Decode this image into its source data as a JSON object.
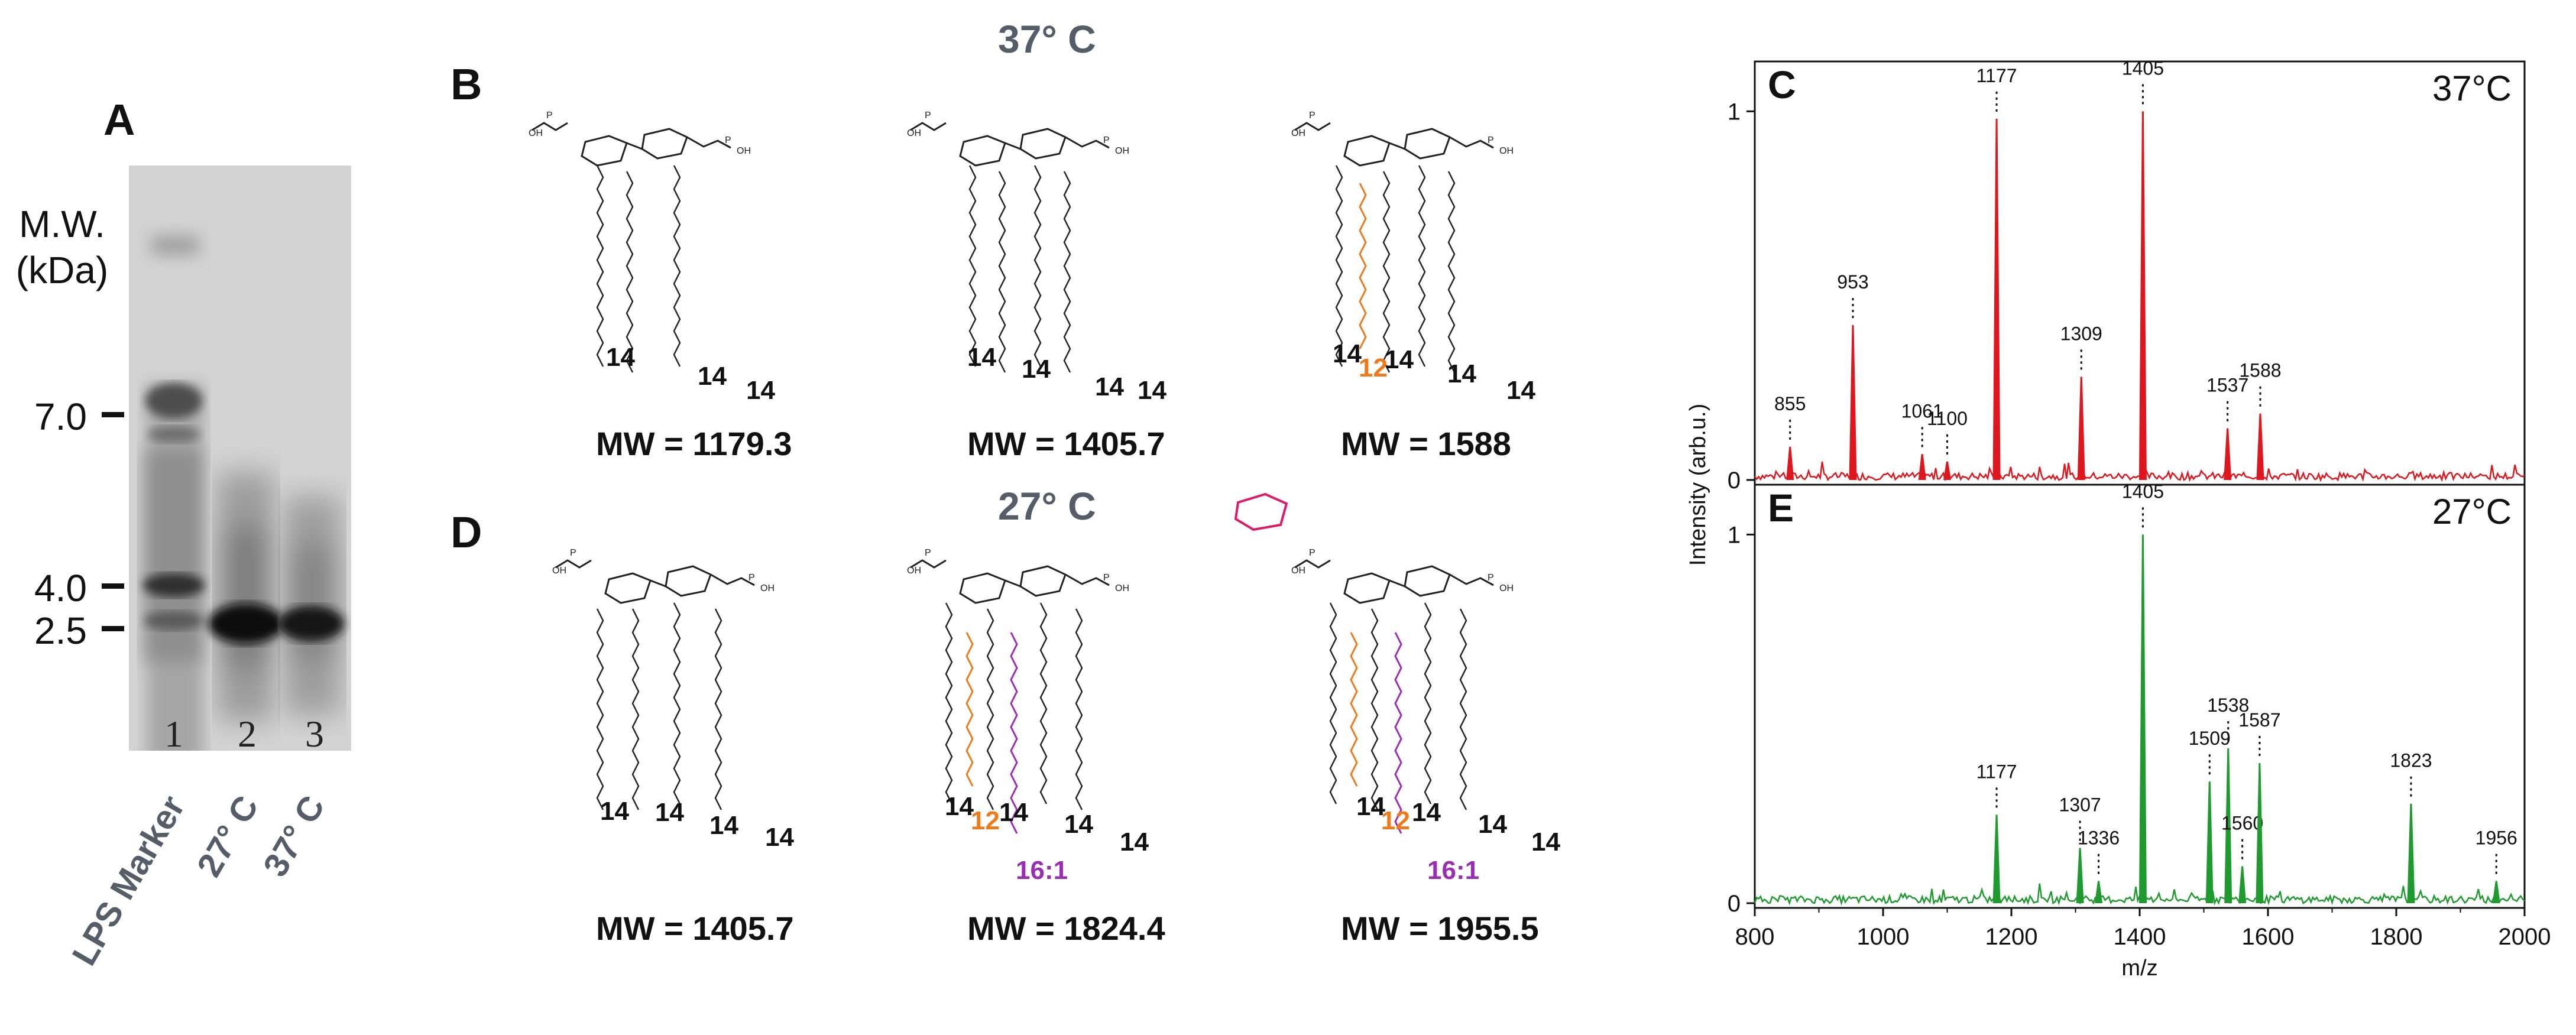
{
  "panel_a": {
    "label": "A",
    "ylabel_line1": "M.W.",
    "ylabel_line2": "(kDa)",
    "ticks": [
      "7.0",
      "4.0",
      "2.5"
    ],
    "lane_numbers": [
      "1",
      "2",
      "3"
    ],
    "lane_labels": [
      "LPS Marker",
      "27° C",
      "37° C"
    ]
  },
  "panel_b": {
    "label": "B",
    "title": "37° C",
    "structures": [
      {
        "chain_labels": [
          "14",
          "14",
          "14"
        ],
        "mw": "MW = 1179.3"
      },
      {
        "chain_labels": [
          "14",
          "14",
          "14",
          "14"
        ],
        "mw": "MW = 1405.7"
      },
      {
        "chain_labels": [
          "14",
          "12",
          "14",
          "14",
          "14"
        ],
        "mw": "MW = 1588"
      }
    ]
  },
  "panel_d": {
    "label": "D",
    "title": "27° C",
    "structures": [
      {
        "chain_labels": [
          "14",
          "14",
          "14",
          "14"
        ],
        "mw": "MW = 1405.7"
      },
      {
        "chain_labels": [
          "14",
          "12",
          "14",
          "14",
          "16:1",
          "14"
        ],
        "mw": "MW = 1824.4"
      },
      {
        "chain_labels": [
          "14",
          "12",
          "14",
          "14",
          "16:1",
          "14"
        ],
        "mw": "MW = 1955.5"
      }
    ]
  },
  "chart_data": [
    {
      "type": "line",
      "panel": "C",
      "title": "37°C",
      "color": "#e0161e",
      "xlabel": "m/z",
      "ylabel": "Intensity (arb.u.)",
      "xlim": [
        800,
        2000
      ],
      "ylim": [
        0,
        1.1
      ],
      "yticks": [
        "0",
        "1"
      ],
      "peaks": [
        {
          "x": 855,
          "y": 0.09,
          "label": "855"
        },
        {
          "x": 953,
          "y": 0.42,
          "label": "953"
        },
        {
          "x": 1061,
          "y": 0.07,
          "label": "1061"
        },
        {
          "x": 1100,
          "y": 0.05,
          "label": "1100"
        },
        {
          "x": 1177,
          "y": 0.98,
          "label": "1177"
        },
        {
          "x": 1309,
          "y": 0.28,
          "label": "1309"
        },
        {
          "x": 1405,
          "y": 1.0,
          "label": "1405"
        },
        {
          "x": 1537,
          "y": 0.14,
          "label": "1537"
        },
        {
          "x": 1588,
          "y": 0.18,
          "label": "1588"
        }
      ]
    },
    {
      "type": "line",
      "panel": "E",
      "title": "27°C",
      "color": "#1e9a2e",
      "xlabel": "m/z",
      "ylabel": "Intensity (arb.u.)",
      "xlim": [
        800,
        2000
      ],
      "ylim": [
        0,
        1.1
      ],
      "xticks": [
        "800",
        "1000",
        "1200",
        "1400",
        "1600",
        "1800",
        "2000"
      ],
      "yticks": [
        "0",
        "1"
      ],
      "peaks": [
        {
          "x": 1177,
          "y": 0.24,
          "label": "1177"
        },
        {
          "x": 1307,
          "y": 0.15,
          "label": "1307"
        },
        {
          "x": 1336,
          "y": 0.06,
          "label": "1336"
        },
        {
          "x": 1405,
          "y": 1.0,
          "label": "1405"
        },
        {
          "x": 1509,
          "y": 0.33,
          "label": "1509"
        },
        {
          "x": 1538,
          "y": 0.42,
          "label": "1538"
        },
        {
          "x": 1560,
          "y": 0.1,
          "label": "1560"
        },
        {
          "x": 1587,
          "y": 0.38,
          "label": "1587"
        },
        {
          "x": 1823,
          "y": 0.27,
          "label": "1823"
        },
        {
          "x": 1956,
          "y": 0.06,
          "label": "1956"
        }
      ]
    }
  ]
}
